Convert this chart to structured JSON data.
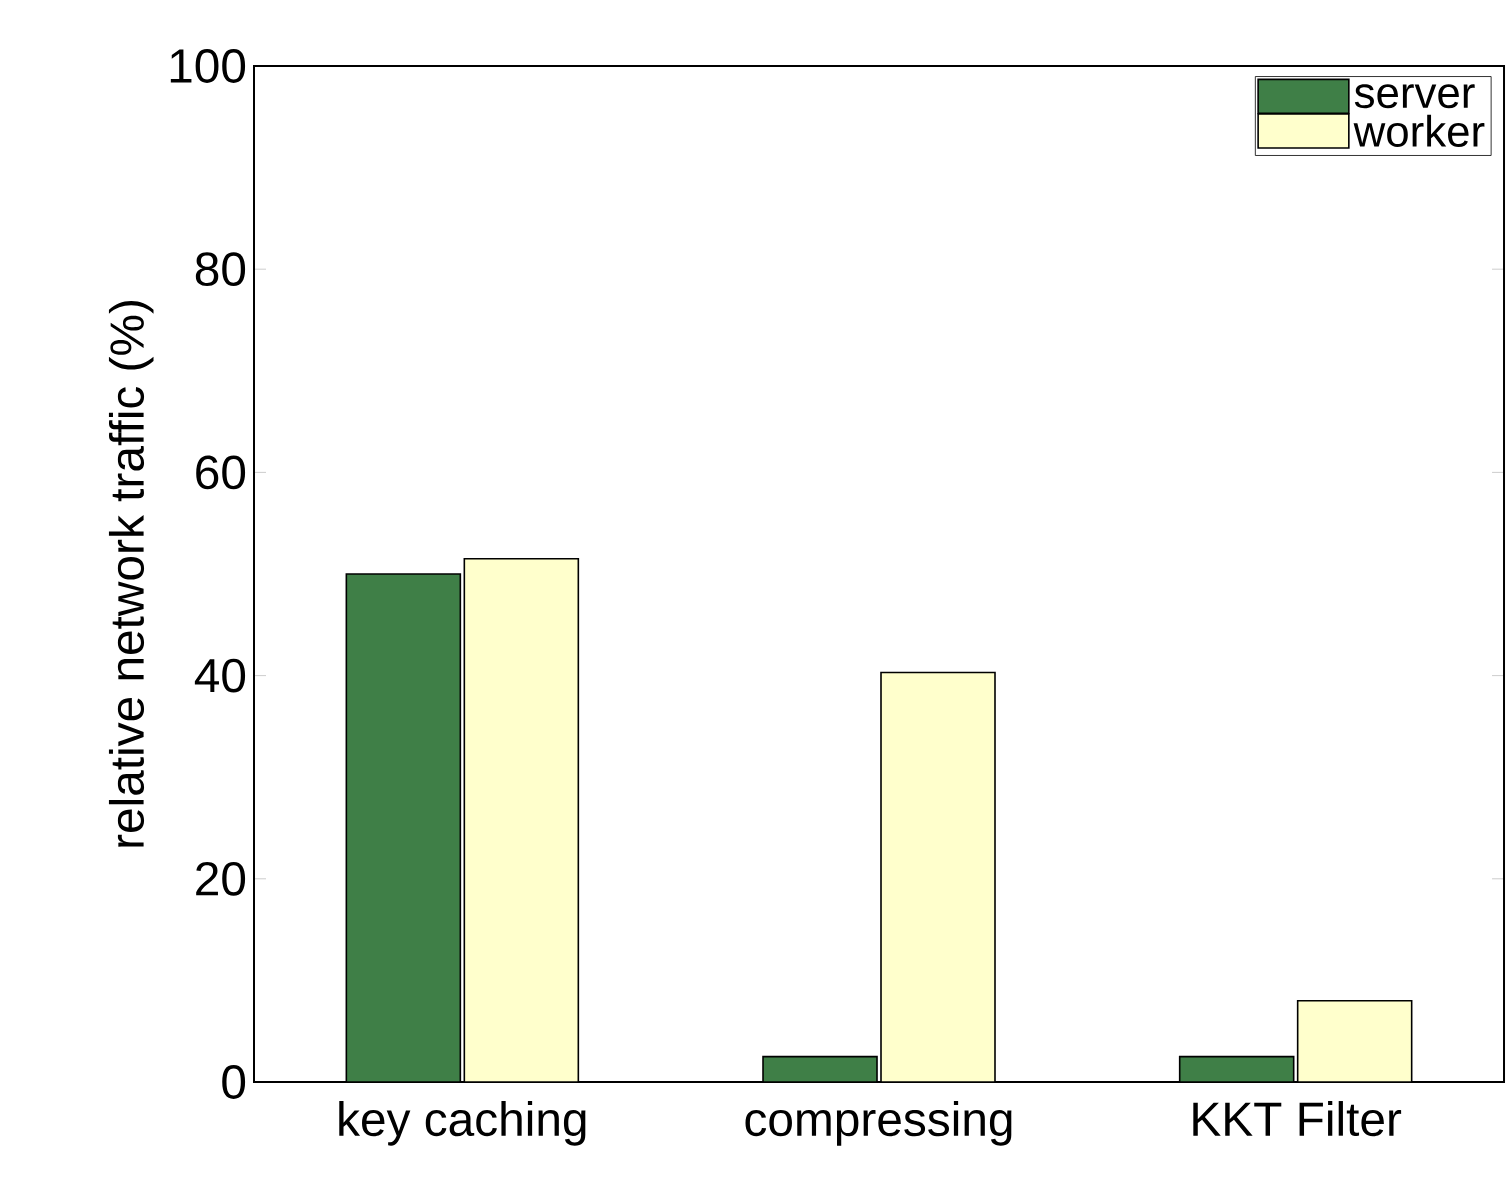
{
  "chart_data": {
    "type": "bar",
    "ylabel": "relative network traffic (%)",
    "categories": [
      "key caching",
      "compressing",
      "KKT Filter"
    ],
    "series": [
      {
        "name": "server",
        "color": "#3f7f47",
        "values": [
          50,
          2.5,
          2.5
        ]
      },
      {
        "name": "worker",
        "color": "#ffffcc",
        "values": [
          51.5,
          40.3,
          8
        ]
      }
    ],
    "ylim": [
      0,
      100
    ],
    "yticks": [
      0,
      20,
      40,
      60,
      80,
      100
    ],
    "grid": false,
    "legend": "top right"
  }
}
